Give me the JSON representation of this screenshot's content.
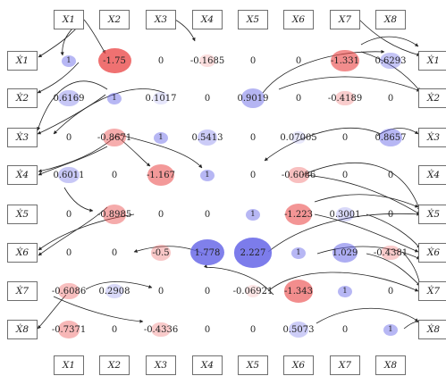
{
  "top_labels": [
    "X1",
    "X2",
    "X3",
    "X4",
    "X5",
    "X6",
    "X7",
    "X8"
  ],
  "bottom_labels": [
    "X1",
    "X2",
    "X3",
    "X4",
    "X5",
    "X6",
    "X7",
    "X8"
  ],
  "left_labels": [
    "Ẋ1",
    "Ẋ2",
    "Ẋ3",
    "Ẋ4",
    "Ẋ5",
    "Ẋ6",
    "Ẋ7",
    "Ẋ8"
  ],
  "right_labels": [
    "Ẋ1",
    "Ẋ2",
    "Ẋ3",
    "Ẋ4",
    "Ẋ5",
    "Ẋ6",
    "Ẋ7",
    "Ẋ8"
  ],
  "matrix": [
    [
      "1",
      "-1.75",
      "0",
      "-0.1685",
      "0",
      "0",
      "-1.331",
      "0.6293"
    ],
    [
      "0.6169",
      "1",
      "0.1017",
      "0",
      "0.9019",
      "0",
      "-0.4189",
      "0"
    ],
    [
      "0",
      "-0.8671",
      "1",
      "0.5413",
      "0",
      "0.07005",
      "0",
      "0.8657"
    ],
    [
      "0.6011",
      "0",
      "-1.167",
      "1",
      "0",
      "-0.6086",
      "0",
      "0"
    ],
    [
      "0",
      "-0.8985",
      "0",
      "0",
      "1",
      "-1.223",
      "0.3001",
      "0"
    ],
    [
      "0",
      "0",
      "-0.5",
      "1.778",
      "2.227",
      "1",
      "1.029",
      "-0.4381"
    ],
    [
      "-0.6086",
      "0.2908",
      "0",
      "0",
      "-0.06921",
      "-1.343",
      "1",
      "0"
    ],
    [
      "-0.7371",
      "0",
      "-0.4336",
      "0",
      "0",
      "0.5073",
      "0",
      "1"
    ]
  ],
  "colors": {
    "positive": "#5f5fe6",
    "negative": "#ea4a4a",
    "box_border": "#6f6f6f"
  }
}
